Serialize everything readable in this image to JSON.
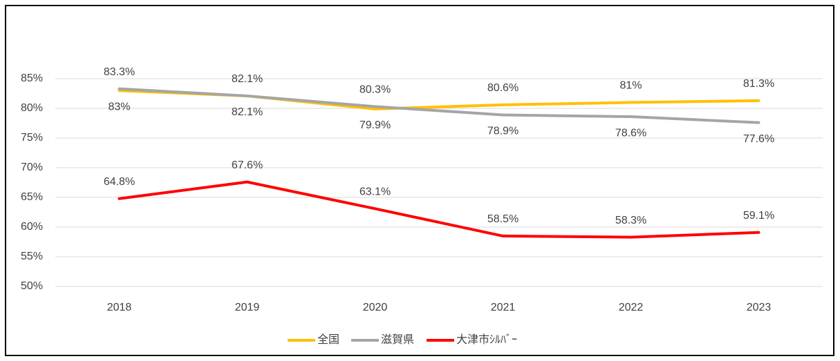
{
  "chart_data": {
    "type": "line",
    "categories": [
      "2018",
      "2019",
      "2020",
      "2021",
      "2022",
      "2023"
    ],
    "series": [
      {
        "name": "全国",
        "color": "#ffc000",
        "values": [
          83,
          82.1,
          79.9,
          80.6,
          81,
          81.3
        ],
        "value_labels": [
          "83%",
          "82.1%",
          "79.9%",
          "80.6%",
          "81%",
          "81.3%"
        ]
      },
      {
        "name": "滋賀県",
        "color": "#a5a5a5",
        "values": [
          83.3,
          82.1,
          80.3,
          78.9,
          78.6,
          77.6
        ],
        "value_labels": [
          "83.3%",
          "82.1%",
          "80.3%",
          "78.9%",
          "78.6%",
          "77.6%"
        ]
      },
      {
        "name": "大津市ｼﾙﾊﾞｰ",
        "color": "#ff0000",
        "values": [
          64.8,
          67.6,
          63.1,
          58.5,
          58.3,
          59.1
        ],
        "value_labels": [
          "64.8%",
          "67.6%",
          "63.1%",
          "58.5%",
          "58.3%",
          "59.1%"
        ]
      }
    ],
    "ylim": [
      50,
      85
    ],
    "yticks": [
      {
        "value": 50,
        "label": "50%"
      },
      {
        "value": 55,
        "label": "55%"
      },
      {
        "value": 60,
        "label": "60%"
      },
      {
        "value": 65,
        "label": "65%"
      },
      {
        "value": 70,
        "label": "70%"
      },
      {
        "value": 75,
        "label": "75%"
      },
      {
        "value": 80,
        "label": "80%"
      },
      {
        "value": 85,
        "label": "85%"
      }
    ],
    "grid": true,
    "legend": "bottom"
  }
}
